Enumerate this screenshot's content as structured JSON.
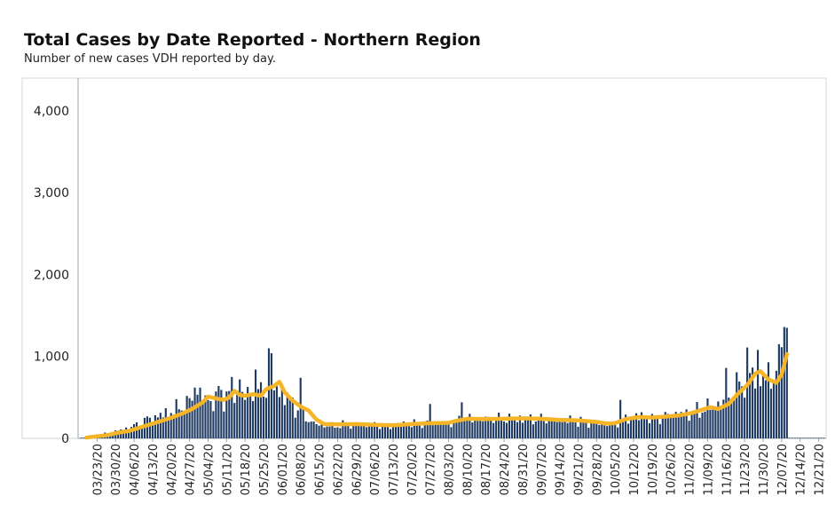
{
  "header": {
    "title": "Total Cases by Date Reported - Northern Region",
    "subtitle": "Number of new cases VDH reported by day."
  },
  "colors": {
    "bars": "#1f3b63",
    "average_line": "#f5b526",
    "axis": "#9aa3ad",
    "frame": "#d5d5d5"
  },
  "chart_data": {
    "type": "bar",
    "title": "Total Cases by Date Reported - Northern Region",
    "subtitle": "Number of new cases VDH reported by day.",
    "xlabel": "",
    "ylabel": "",
    "ylim": [
      0,
      4400
    ],
    "yticks": [
      0,
      1000,
      2000,
      3000,
      4000
    ],
    "ytick_labels": [
      "0",
      "1,000",
      "2,000",
      "3,000",
      "4,000"
    ],
    "x_start": "2020-03-17",
    "x_end": "2020-12-23",
    "xtick_labels": [
      "03/23/20",
      "03/30/20",
      "04/06/20",
      "04/13/20",
      "04/20/20",
      "04/27/20",
      "05/04/20",
      "05/11/20",
      "05/18/20",
      "05/25/20",
      "06/01/20",
      "06/08/20",
      "06/15/20",
      "06/22/20",
      "06/29/20",
      "07/06/20",
      "07/13/20",
      "07/20/20",
      "07/27/20",
      "08/03/20",
      "08/10/20",
      "08/17/20",
      "08/24/20",
      "08/31/20",
      "09/07/20",
      "09/14/20",
      "09/21/20",
      "09/28/20",
      "10/05/20",
      "10/12/20",
      "10/19/20",
      "10/26/20",
      "11/02/20",
      "11/09/20",
      "11/16/20",
      "11/23/20",
      "11/30/20",
      "12/07/20",
      "12/14/20",
      "12/21/20"
    ],
    "legend": "none",
    "grid": false,
    "series": [
      {
        "type": "bar",
        "anchors": [
          [
            "2020-03-17",
            5
          ],
          [
            "2020-03-21",
            20
          ],
          [
            "2020-03-25",
            45
          ],
          [
            "2020-03-29",
            70
          ],
          [
            "2020-04-02",
            110
          ],
          [
            "2020-04-06",
            150
          ],
          [
            "2020-04-10",
            220
          ],
          [
            "2020-04-14",
            260
          ],
          [
            "2020-04-18",
            300
          ],
          [
            "2020-04-22",
            350
          ],
          [
            "2020-04-26",
            420
          ],
          [
            "2020-04-30",
            520
          ],
          [
            "2020-05-04",
            450
          ],
          [
            "2020-05-08",
            500
          ],
          [
            "2020-05-12",
            560
          ],
          [
            "2020-05-16",
            540
          ],
          [
            "2020-05-20",
            520
          ],
          [
            "2020-05-24",
            540
          ],
          [
            "2020-05-28",
            650
          ],
          [
            "2020-06-01",
            560
          ],
          [
            "2020-06-05",
            420
          ],
          [
            "2020-06-09",
            280
          ],
          [
            "2020-06-13",
            180
          ],
          [
            "2020-06-17",
            150
          ],
          [
            "2020-06-21",
            150
          ],
          [
            "2020-06-25",
            165
          ],
          [
            "2020-06-29",
            160
          ],
          [
            "2020-07-05",
            165
          ],
          [
            "2020-07-12",
            155
          ],
          [
            "2020-07-19",
            175
          ],
          [
            "2020-07-26",
            185
          ],
          [
            "2020-08-02",
            190
          ],
          [
            "2020-08-09",
            230
          ],
          [
            "2020-08-16",
            235
          ],
          [
            "2020-08-23",
            240
          ],
          [
            "2020-08-30",
            240
          ],
          [
            "2020-09-06",
            230
          ],
          [
            "2020-09-13",
            220
          ],
          [
            "2020-09-20",
            210
          ],
          [
            "2020-09-27",
            180
          ],
          [
            "2020-10-04",
            170
          ],
          [
            "2020-10-09",
            230
          ],
          [
            "2020-10-15",
            270
          ],
          [
            "2020-10-20",
            240
          ],
          [
            "2020-10-27",
            290
          ],
          [
            "2020-11-03",
            310
          ],
          [
            "2020-11-08",
            360
          ],
          [
            "2020-11-12",
            400
          ],
          [
            "2020-11-16",
            470
          ],
          [
            "2020-11-20",
            620
          ],
          [
            "2020-11-25",
            780
          ],
          [
            "2020-11-29",
            760
          ],
          [
            "2020-12-03",
            720
          ],
          [
            "2020-12-07",
            1050
          ],
          [
            "2020-12-09",
            1150
          ]
        ],
        "spikes": [
          [
            "2020-04-29",
            620
          ],
          [
            "2020-05-01",
            620
          ],
          [
            "2020-05-08",
            640
          ],
          [
            "2020-05-13",
            750
          ],
          [
            "2020-05-16",
            720
          ],
          [
            "2020-05-22",
            840
          ],
          [
            "2020-05-27",
            1100
          ],
          [
            "2020-05-28",
            1040
          ],
          [
            "2020-06-08",
            740
          ],
          [
            "2020-07-27",
            420
          ],
          [
            "2020-08-08",
            440
          ],
          [
            "2020-10-07",
            470
          ],
          [
            "2020-11-16",
            860
          ],
          [
            "2020-11-24",
            1110
          ],
          [
            "2020-11-28",
            1080
          ],
          [
            "2020-12-06",
            1150
          ],
          [
            "2020-12-08",
            1360
          ],
          [
            "2020-12-09",
            1350
          ]
        ],
        "last_value_date": "2020-12-09"
      },
      {
        "type": "line",
        "name": "",
        "values": [
          [
            "2020-03-19",
            10
          ],
          [
            "2020-03-23",
            25
          ],
          [
            "2020-03-27",
            40
          ],
          [
            "2020-03-31",
            70
          ],
          [
            "2020-04-04",
            90
          ],
          [
            "2020-04-08",
            130
          ],
          [
            "2020-04-12",
            170
          ],
          [
            "2020-04-16",
            210
          ],
          [
            "2020-04-20",
            250
          ],
          [
            "2020-04-24",
            300
          ],
          [
            "2020-04-28",
            360
          ],
          [
            "2020-05-02",
            440
          ],
          [
            "2020-05-04",
            510
          ],
          [
            "2020-05-08",
            480
          ],
          [
            "2020-05-10",
            470
          ],
          [
            "2020-05-12",
            500
          ],
          [
            "2020-05-14",
            580
          ],
          [
            "2020-05-16",
            530
          ],
          [
            "2020-05-18",
            520
          ],
          [
            "2020-05-21",
            540
          ],
          [
            "2020-05-24",
            520
          ],
          [
            "2020-05-26",
            600
          ],
          [
            "2020-05-29",
            640
          ],
          [
            "2020-05-31",
            690
          ],
          [
            "2020-06-02",
            560
          ],
          [
            "2020-06-05",
            460
          ],
          [
            "2020-06-08",
            390
          ],
          [
            "2020-06-11",
            340
          ],
          [
            "2020-06-14",
            230
          ],
          [
            "2020-06-17",
            175
          ],
          [
            "2020-06-22",
            170
          ],
          [
            "2020-06-29",
            175
          ],
          [
            "2020-07-06",
            165
          ],
          [
            "2020-07-13",
            160
          ],
          [
            "2020-07-20",
            175
          ],
          [
            "2020-07-27",
            185
          ],
          [
            "2020-08-03",
            190
          ],
          [
            "2020-08-06",
            215
          ],
          [
            "2020-08-10",
            240
          ],
          [
            "2020-08-17",
            235
          ],
          [
            "2020-08-24",
            240
          ],
          [
            "2020-08-31",
            245
          ],
          [
            "2020-09-07",
            240
          ],
          [
            "2020-09-14",
            225
          ],
          [
            "2020-09-21",
            220
          ],
          [
            "2020-09-28",
            200
          ],
          [
            "2020-10-02",
            180
          ],
          [
            "2020-10-05",
            185
          ],
          [
            "2020-10-09",
            235
          ],
          [
            "2020-10-14",
            260
          ],
          [
            "2020-10-19",
            255
          ],
          [
            "2020-10-24",
            265
          ],
          [
            "2020-10-29",
            280
          ],
          [
            "2020-11-03",
            310
          ],
          [
            "2020-11-07",
            350
          ],
          [
            "2020-11-10",
            380
          ],
          [
            "2020-11-13",
            360
          ],
          [
            "2020-11-17",
            420
          ],
          [
            "2020-11-20",
            530
          ],
          [
            "2020-11-24",
            650
          ],
          [
            "2020-11-27",
            790
          ],
          [
            "2020-11-29",
            820
          ],
          [
            "2020-12-02",
            720
          ],
          [
            "2020-12-05",
            680
          ],
          [
            "2020-12-07",
            780
          ],
          [
            "2020-12-09",
            1030
          ]
        ]
      }
    ]
  }
}
